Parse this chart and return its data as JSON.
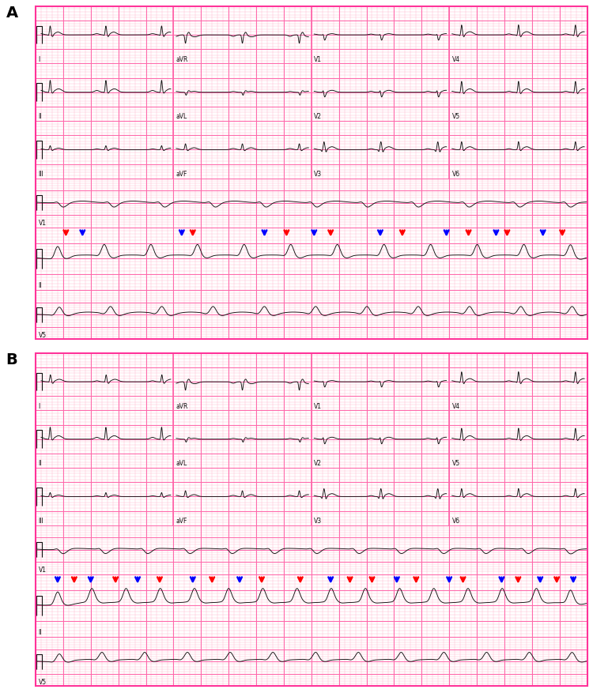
{
  "bg_color": "#ffffff",
  "grid_minor_color": "#ffb3cc",
  "grid_major_color": "#ff66aa",
  "ecg_color": "#111111",
  "panel_bg": "#ffe8f0",
  "panel_A_label": "A",
  "panel_B_label": "B",
  "panel_border_color": "#ff3399",
  "row_labels_A": [
    [
      "I",
      "aVR",
      "V1",
      "V4"
    ],
    [
      "II",
      "aVL",
      "V2",
      "V5"
    ],
    [
      "III",
      "aVF",
      "V3",
      "V6"
    ],
    [
      "V1"
    ],
    [
      "II"
    ],
    [
      "V5"
    ]
  ],
  "row_labels_B": [
    [
      "I",
      "aVR",
      "V1",
      "V4"
    ],
    [
      "II",
      "aVL",
      "V2",
      "V5"
    ],
    [
      "III",
      "aVF",
      "V3",
      "V6"
    ],
    [
      "V1"
    ],
    [
      "II"
    ],
    [
      "V5"
    ]
  ],
  "arrows_A": {
    "red": [
      0.055,
      0.285,
      0.455,
      0.535,
      0.665,
      0.785,
      0.855,
      0.955
    ],
    "blue": [
      0.085,
      0.265,
      0.415,
      0.505,
      0.625,
      0.745,
      0.835,
      0.92
    ]
  },
  "arrows_B": {
    "blue": [
      0.04,
      0.1,
      0.185,
      0.285,
      0.37,
      0.535,
      0.655,
      0.75,
      0.845,
      0.915,
      0.975
    ],
    "red": [
      0.07,
      0.145,
      0.225,
      0.32,
      0.41,
      0.48,
      0.57,
      0.61,
      0.69,
      0.775,
      0.875,
      0.945
    ]
  }
}
